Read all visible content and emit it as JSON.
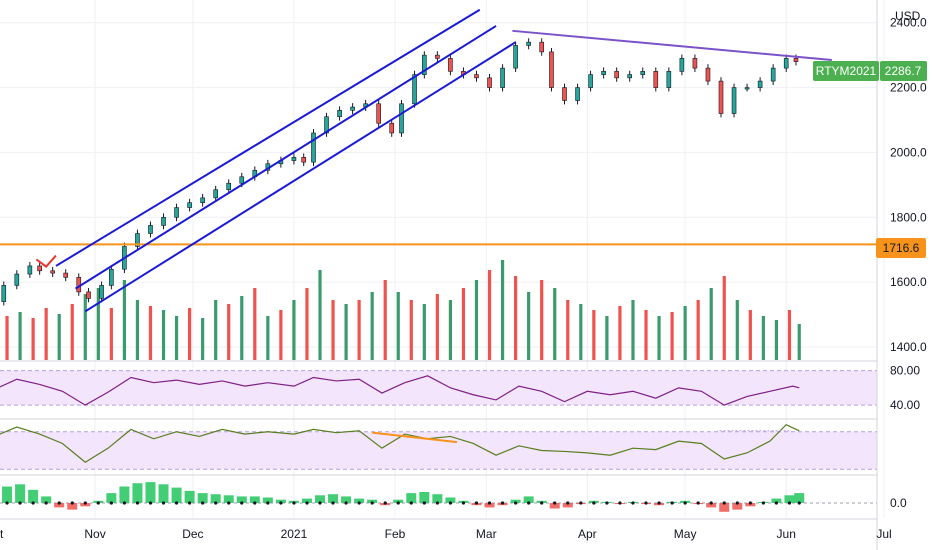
{
  "chart_data": {
    "type": "candlestick",
    "currency_label": "USD",
    "symbol": "RTYM2021",
    "last_price": "2286.7",
    "horizontal_level": "1716.6",
    "price_ticks": [
      "2400.0",
      "2200.0",
      "2000.0",
      "1800.0",
      "1600.0",
      "1400.0"
    ],
    "price_tick_values": [
      2400,
      2200,
      2000,
      1800,
      1600,
      1400
    ],
    "ylim": [
      1360,
      2470
    ],
    "x_labels": [
      "Oct",
      "Nov",
      "Dec",
      "2021",
      "Feb",
      "Mar",
      "Apr",
      "May",
      "Jun",
      "Jul"
    ],
    "close_series": [
      {
        "d": "2020-10-01",
        "c": 1540
      },
      {
        "d": "2020-10-04",
        "c": 1590
      },
      {
        "d": "2020-10-08",
        "c": 1625
      },
      {
        "d": "2020-10-12",
        "c": 1650
      },
      {
        "d": "2020-10-15",
        "c": 1635
      },
      {
        "d": "2020-10-19",
        "c": 1628
      },
      {
        "d": "2020-10-23",
        "c": 1615
      },
      {
        "d": "2020-10-27",
        "c": 1570
      },
      {
        "d": "2020-10-30",
        "c": 1550
      },
      {
        "d": "2020-11-03",
        "c": 1590
      },
      {
        "d": "2020-11-06",
        "c": 1640
      },
      {
        "d": "2020-11-10",
        "c": 1710
      },
      {
        "d": "2020-11-14",
        "c": 1750
      },
      {
        "d": "2020-11-18",
        "c": 1775
      },
      {
        "d": "2020-11-22",
        "c": 1800
      },
      {
        "d": "2020-11-26",
        "c": 1830
      },
      {
        "d": "2020-11-30",
        "c": 1845
      },
      {
        "d": "2020-12-04",
        "c": 1860
      },
      {
        "d": "2020-12-08",
        "c": 1885
      },
      {
        "d": "2020-12-12",
        "c": 1905
      },
      {
        "d": "2020-12-16",
        "c": 1925
      },
      {
        "d": "2020-12-20",
        "c": 1945
      },
      {
        "d": "2020-12-24",
        "c": 1965
      },
      {
        "d": "2020-12-28",
        "c": 1975
      },
      {
        "d": "2021-01-01",
        "c": 1985
      },
      {
        "d": "2021-01-04",
        "c": 1970
      },
      {
        "d": "2021-01-07",
        "c": 2060
      },
      {
        "d": "2021-01-11",
        "c": 2110
      },
      {
        "d": "2021-01-15",
        "c": 2130
      },
      {
        "d": "2021-01-19",
        "c": 2140
      },
      {
        "d": "2021-01-23",
        "c": 2150
      },
      {
        "d": "2021-01-27",
        "c": 2090
      },
      {
        "d": "2021-01-31",
        "c": 2060
      },
      {
        "d": "2021-02-03",
        "c": 2150
      },
      {
        "d": "2021-02-07",
        "c": 2240
      },
      {
        "d": "2021-02-10",
        "c": 2300
      },
      {
        "d": "2021-02-14",
        "c": 2290
      },
      {
        "d": "2021-02-18",
        "c": 2250
      },
      {
        "d": "2021-02-22",
        "c": 2240
      },
      {
        "d": "2021-02-26",
        "c": 2230
      },
      {
        "d": "2021-03-02",
        "c": 2200
      },
      {
        "d": "2021-03-06",
        "c": 2260
      },
      {
        "d": "2021-03-10",
        "c": 2330
      },
      {
        "d": "2021-03-14",
        "c": 2340
      },
      {
        "d": "2021-03-18",
        "c": 2310
      },
      {
        "d": "2021-03-21",
        "c": 2200
      },
      {
        "d": "2021-03-25",
        "c": 2160
      },
      {
        "d": "2021-03-29",
        "c": 2200
      },
      {
        "d": "2021-04-02",
        "c": 2240
      },
      {
        "d": "2021-04-06",
        "c": 2250
      },
      {
        "d": "2021-04-10",
        "c": 2230
      },
      {
        "d": "2021-04-14",
        "c": 2240
      },
      {
        "d": "2021-04-18",
        "c": 2250
      },
      {
        "d": "2021-04-22",
        "c": 2200
      },
      {
        "d": "2021-04-26",
        "c": 2250
      },
      {
        "d": "2021-04-30",
        "c": 2290
      },
      {
        "d": "2021-05-04",
        "c": 2260
      },
      {
        "d": "2021-05-08",
        "c": 2220
      },
      {
        "d": "2021-05-12",
        "c": 2120
      },
      {
        "d": "2021-05-16",
        "c": 2200
      },
      {
        "d": "2021-05-20",
        "c": 2200
      },
      {
        "d": "2021-05-24",
        "c": 2220
      },
      {
        "d": "2021-05-28",
        "c": 2260
      },
      {
        "d": "2021-06-01",
        "c": 2290
      },
      {
        "d": "2021-06-04",
        "c": 2280
      }
    ],
    "volume_series": [
      {
        "d": "2020-10-01",
        "v": 0.25,
        "up": true
      },
      {
        "d": "2020-10-05",
        "v": 0.22,
        "up": false
      },
      {
        "d": "2020-10-09",
        "v": 0.24,
        "up": true
      },
      {
        "d": "2020-10-13",
        "v": 0.21,
        "up": false
      },
      {
        "d": "2020-10-17",
        "v": 0.26,
        "up": false
      },
      {
        "d": "2020-10-21",
        "v": 0.23,
        "up": true
      },
      {
        "d": "2020-10-25",
        "v": 0.28,
        "up": false
      },
      {
        "d": "2020-10-29",
        "v": 0.33,
        "up": true
      },
      {
        "d": "2020-11-02",
        "v": 0.36,
        "up": true
      },
      {
        "d": "2020-11-06",
        "v": 0.26,
        "up": false
      },
      {
        "d": "2020-11-10",
        "v": 0.4,
        "up": true
      },
      {
        "d": "2020-11-14",
        "v": 0.3,
        "up": true
      },
      {
        "d": "2020-11-18",
        "v": 0.27,
        "up": false
      },
      {
        "d": "2020-11-22",
        "v": 0.25,
        "up": true
      },
      {
        "d": "2020-11-26",
        "v": 0.22,
        "up": true
      },
      {
        "d": "2020-11-30",
        "v": 0.26,
        "up": false
      },
      {
        "d": "2020-12-04",
        "v": 0.21,
        "up": true
      },
      {
        "d": "2020-12-08",
        "v": 0.3,
        "up": true
      },
      {
        "d": "2020-12-12",
        "v": 0.28,
        "up": false
      },
      {
        "d": "2020-12-16",
        "v": 0.32,
        "up": true
      },
      {
        "d": "2020-12-20",
        "v": 0.36,
        "up": false
      },
      {
        "d": "2020-12-24",
        "v": 0.22,
        "up": true
      },
      {
        "d": "2020-12-28",
        "v": 0.25,
        "up": false
      },
      {
        "d": "2021-01-01",
        "v": 0.3,
        "up": true
      },
      {
        "d": "2021-01-05",
        "v": 0.36,
        "up": false
      },
      {
        "d": "2021-01-09",
        "v": 0.45,
        "up": true
      },
      {
        "d": "2021-01-13",
        "v": 0.3,
        "up": false
      },
      {
        "d": "2021-01-17",
        "v": 0.28,
        "up": true
      },
      {
        "d": "2021-01-21",
        "v": 0.3,
        "up": false
      },
      {
        "d": "2021-01-25",
        "v": 0.34,
        "up": true
      },
      {
        "d": "2021-01-29",
        "v": 0.4,
        "up": false
      },
      {
        "d": "2021-02-02",
        "v": 0.34,
        "up": true
      },
      {
        "d": "2021-02-06",
        "v": 0.3,
        "up": false
      },
      {
        "d": "2021-02-10",
        "v": 0.28,
        "up": true
      },
      {
        "d": "2021-02-14",
        "v": 0.33,
        "up": false
      },
      {
        "d": "2021-02-18",
        "v": 0.3,
        "up": true
      },
      {
        "d": "2021-02-22",
        "v": 0.36,
        "up": false
      },
      {
        "d": "2021-02-26",
        "v": 0.4,
        "up": true
      },
      {
        "d": "2021-03-02",
        "v": 0.45,
        "up": false
      },
      {
        "d": "2021-03-06",
        "v": 0.5,
        "up": true
      },
      {
        "d": "2021-03-10",
        "v": 0.42,
        "up": false
      },
      {
        "d": "2021-03-14",
        "v": 0.34,
        "up": true
      },
      {
        "d": "2021-03-18",
        "v": 0.4,
        "up": false
      },
      {
        "d": "2021-03-22",
        "v": 0.36,
        "up": true
      },
      {
        "d": "2021-03-26",
        "v": 0.3,
        "up": false
      },
      {
        "d": "2021-03-30",
        "v": 0.28,
        "up": true
      },
      {
        "d": "2021-04-03",
        "v": 0.25,
        "up": false
      },
      {
        "d": "2021-04-07",
        "v": 0.22,
        "up": true
      },
      {
        "d": "2021-04-11",
        "v": 0.27,
        "up": false
      },
      {
        "d": "2021-04-15",
        "v": 0.3,
        "up": true
      },
      {
        "d": "2021-04-19",
        "v": 0.25,
        "up": false
      },
      {
        "d": "2021-04-23",
        "v": 0.22,
        "up": true
      },
      {
        "d": "2021-04-27",
        "v": 0.24,
        "up": false
      },
      {
        "d": "2021-05-01",
        "v": 0.27,
        "up": true
      },
      {
        "d": "2021-05-05",
        "v": 0.3,
        "up": false
      },
      {
        "d": "2021-05-09",
        "v": 0.36,
        "up": true
      },
      {
        "d": "2021-05-13",
        "v": 0.42,
        "up": false
      },
      {
        "d": "2021-05-17",
        "v": 0.3,
        "up": true
      },
      {
        "d": "2021-05-21",
        "v": 0.25,
        "up": false
      },
      {
        "d": "2021-05-25",
        "v": 0.22,
        "up": true
      },
      {
        "d": "2021-05-29",
        "v": 0.2,
        "up": true
      },
      {
        "d": "2021-06-02",
        "v": 0.25,
        "up": false
      },
      {
        "d": "2021-06-05",
        "v": 0.18,
        "up": true
      }
    ],
    "rsi_axis_ticks": [
      "80.00",
      "40.00"
    ],
    "rsi_axis_values": [
      80,
      40
    ],
    "rsi_series": [
      {
        "d": "2020-10-01",
        "v": 58
      },
      {
        "d": "2020-10-08",
        "v": 70
      },
      {
        "d": "2020-10-15",
        "v": 64
      },
      {
        "d": "2020-10-22",
        "v": 56
      },
      {
        "d": "2020-10-29",
        "v": 40
      },
      {
        "d": "2020-11-05",
        "v": 55
      },
      {
        "d": "2020-11-12",
        "v": 72
      },
      {
        "d": "2020-11-19",
        "v": 66
      },
      {
        "d": "2020-11-26",
        "v": 69
      },
      {
        "d": "2020-12-03",
        "v": 64
      },
      {
        "d": "2020-12-10",
        "v": 68
      },
      {
        "d": "2020-12-17",
        "v": 62
      },
      {
        "d": "2020-12-24",
        "v": 66
      },
      {
        "d": "2021-01-01",
        "v": 62
      },
      {
        "d": "2021-01-07",
        "v": 72
      },
      {
        "d": "2021-01-14",
        "v": 68
      },
      {
        "d": "2021-01-21",
        "v": 70
      },
      {
        "d": "2021-01-28",
        "v": 54
      },
      {
        "d": "2021-02-04",
        "v": 66
      },
      {
        "d": "2021-02-11",
        "v": 74
      },
      {
        "d": "2021-02-18",
        "v": 60
      },
      {
        "d": "2021-02-25",
        "v": 52
      },
      {
        "d": "2021-03-04",
        "v": 46
      },
      {
        "d": "2021-03-11",
        "v": 62
      },
      {
        "d": "2021-03-18",
        "v": 56
      },
      {
        "d": "2021-03-25",
        "v": 44
      },
      {
        "d": "2021-04-01",
        "v": 56
      },
      {
        "d": "2021-04-08",
        "v": 52
      },
      {
        "d": "2021-04-15",
        "v": 56
      },
      {
        "d": "2021-04-22",
        "v": 48
      },
      {
        "d": "2021-04-29",
        "v": 60
      },
      {
        "d": "2021-05-06",
        "v": 56
      },
      {
        "d": "2021-05-13",
        "v": 40
      },
      {
        "d": "2021-05-20",
        "v": 50
      },
      {
        "d": "2021-05-27",
        "v": 56
      },
      {
        "d": "2021-06-03",
        "v": 62
      },
      {
        "d": "2021-06-05",
        "v": 60
      }
    ],
    "stoch_series": [
      {
        "d": "2020-10-01",
        "v": 70
      },
      {
        "d": "2020-10-08",
        "v": 90
      },
      {
        "d": "2020-10-15",
        "v": 75
      },
      {
        "d": "2020-10-22",
        "v": 55
      },
      {
        "d": "2020-10-29",
        "v": 15
      },
      {
        "d": "2020-11-05",
        "v": 45
      },
      {
        "d": "2020-11-12",
        "v": 85
      },
      {
        "d": "2020-11-19",
        "v": 65
      },
      {
        "d": "2020-11-26",
        "v": 80
      },
      {
        "d": "2020-12-03",
        "v": 70
      },
      {
        "d": "2020-12-10",
        "v": 85
      },
      {
        "d": "2020-12-17",
        "v": 75
      },
      {
        "d": "2020-12-24",
        "v": 80
      },
      {
        "d": "2021-01-01",
        "v": 75
      },
      {
        "d": "2021-01-07",
        "v": 85
      },
      {
        "d": "2021-01-14",
        "v": 78
      },
      {
        "d": "2021-01-21",
        "v": 82
      },
      {
        "d": "2021-01-28",
        "v": 45
      },
      {
        "d": "2021-02-04",
        "v": 75
      },
      {
        "d": "2021-02-11",
        "v": 65
      },
      {
        "d": "2021-02-18",
        "v": 70
      },
      {
        "d": "2021-02-25",
        "v": 55
      },
      {
        "d": "2021-03-04",
        "v": 30
      },
      {
        "d": "2021-03-11",
        "v": 50
      },
      {
        "d": "2021-03-18",
        "v": 40
      },
      {
        "d": "2021-03-25",
        "v": 38
      },
      {
        "d": "2021-04-01",
        "v": 35
      },
      {
        "d": "2021-04-08",
        "v": 30
      },
      {
        "d": "2021-04-15",
        "v": 45
      },
      {
        "d": "2021-04-22",
        "v": 42
      },
      {
        "d": "2021-04-29",
        "v": 60
      },
      {
        "d": "2021-05-06",
        "v": 55
      },
      {
        "d": "2021-05-13",
        "v": 22
      },
      {
        "d": "2021-05-20",
        "v": 35
      },
      {
        "d": "2021-05-27",
        "v": 60
      },
      {
        "d": "2021-06-01",
        "v": 95
      },
      {
        "d": "2021-06-05",
        "v": 82
      }
    ],
    "macd_axis_tick": "0.0",
    "macd_hist": [
      {
        "d": "2020-10-01",
        "v": 0.5
      },
      {
        "d": "2020-10-05",
        "v": 0.75
      },
      {
        "d": "2020-10-09",
        "v": 0.85
      },
      {
        "d": "2020-10-13",
        "v": 0.6
      },
      {
        "d": "2020-10-17",
        "v": 0.3
      },
      {
        "d": "2020-10-21",
        "v": -0.2
      },
      {
        "d": "2020-10-25",
        "v": -0.3
      },
      {
        "d": "2020-10-29",
        "v": -0.15
      },
      {
        "d": "2020-11-02",
        "v": 0.1
      },
      {
        "d": "2020-11-06",
        "v": 0.45
      },
      {
        "d": "2020-11-10",
        "v": 0.75
      },
      {
        "d": "2020-11-14",
        "v": 0.9
      },
      {
        "d": "2020-11-18",
        "v": 0.95
      },
      {
        "d": "2020-11-22",
        "v": 0.85
      },
      {
        "d": "2020-11-26",
        "v": 0.7
      },
      {
        "d": "2020-11-30",
        "v": 0.55
      },
      {
        "d": "2020-12-04",
        "v": 0.45
      },
      {
        "d": "2020-12-08",
        "v": 0.4
      },
      {
        "d": "2020-12-12",
        "v": 0.35
      },
      {
        "d": "2020-12-16",
        "v": 0.3
      },
      {
        "d": "2020-12-20",
        "v": 0.3
      },
      {
        "d": "2020-12-24",
        "v": 0.25
      },
      {
        "d": "2020-12-28",
        "v": 0.15
      },
      {
        "d": "2021-01-01",
        "v": 0.1
      },
      {
        "d": "2021-01-05",
        "v": 0.2
      },
      {
        "d": "2021-01-09",
        "v": 0.35
      },
      {
        "d": "2021-01-13",
        "v": 0.4
      },
      {
        "d": "2021-01-17",
        "v": 0.3
      },
      {
        "d": "2021-01-21",
        "v": 0.2
      },
      {
        "d": "2021-01-25",
        "v": 0.15
      },
      {
        "d": "2021-01-29",
        "v": -0.1
      },
      {
        "d": "2021-02-02",
        "v": 0.15
      },
      {
        "d": "2021-02-06",
        "v": 0.45
      },
      {
        "d": "2021-02-10",
        "v": 0.5
      },
      {
        "d": "2021-02-14",
        "v": 0.4
      },
      {
        "d": "2021-02-18",
        "v": 0.25
      },
      {
        "d": "2021-02-22",
        "v": 0.1
      },
      {
        "d": "2021-02-26",
        "v": -0.1
      },
      {
        "d": "2021-03-02",
        "v": -0.2
      },
      {
        "d": "2021-03-06",
        "v": -0.1
      },
      {
        "d": "2021-03-10",
        "v": 0.15
      },
      {
        "d": "2021-03-14",
        "v": 0.3
      },
      {
        "d": "2021-03-18",
        "v": 0.1
      },
      {
        "d": "2021-03-22",
        "v": -0.25
      },
      {
        "d": "2021-03-26",
        "v": -0.2
      },
      {
        "d": "2021-03-30",
        "v": -0.05
      },
      {
        "d": "2021-04-03",
        "v": 0.1
      },
      {
        "d": "2021-04-07",
        "v": 0.05
      },
      {
        "d": "2021-04-11",
        "v": -0.05
      },
      {
        "d": "2021-04-15",
        "v": 0.05
      },
      {
        "d": "2021-04-19",
        "v": -0.05
      },
      {
        "d": "2021-04-23",
        "v": -0.1
      },
      {
        "d": "2021-04-27",
        "v": 0.05
      },
      {
        "d": "2021-05-01",
        "v": 0.1
      },
      {
        "d": "2021-05-05",
        "v": -0.05
      },
      {
        "d": "2021-05-09",
        "v": -0.2
      },
      {
        "d": "2021-05-13",
        "v": -0.4
      },
      {
        "d": "2021-05-17",
        "v": -0.3
      },
      {
        "d": "2021-05-21",
        "v": -0.15
      },
      {
        "d": "2021-05-25",
        "v": 0.05
      },
      {
        "d": "2021-05-29",
        "v": 0.2
      },
      {
        "d": "2021-06-02",
        "v": 0.35
      },
      {
        "d": "2021-06-05",
        "v": 0.45
      }
    ],
    "colors": {
      "up": "#26a69a",
      "down": "#ef5350",
      "volume_up": "#3c9b6e",
      "volume_down": "#ef5350",
      "channel": "#1a1ad6",
      "resistance": "#7b52c8",
      "level": "#f7931a",
      "rsi": "#7e1f86",
      "rsi_band": "#f3e5fb",
      "stoch": "#587d20",
      "macd_up": "#22c55e",
      "macd_down": "#ef5350",
      "grid": "#eef0f4",
      "price_badge": "#4caf50"
    }
  }
}
